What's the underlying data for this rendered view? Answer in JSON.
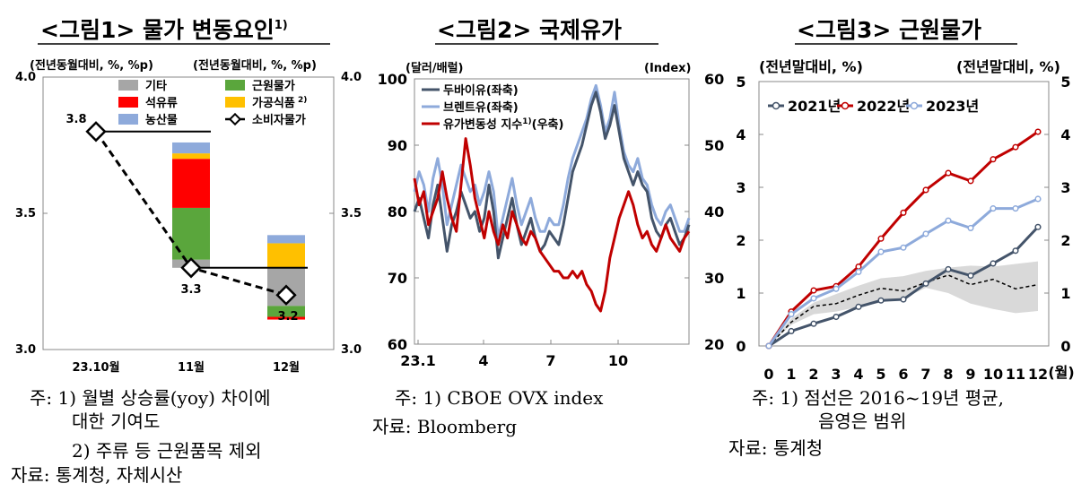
{
  "panel1": {
    "title": "<그림1> 물가 변동요인",
    "title_sup": "1)",
    "left_unit": "(전년동월대비, %, %p)",
    "right_unit": "(전년동월대비, %, %p)",
    "notes": [
      "주: 1) 월별 상승률(yoy) 차이에",
      "대한 기여도",
      "2) 주류 등 근원품목 제외",
      "자료: 통계청, 자체시산"
    ]
  },
  "panel2": {
    "title": "<그림2> 국제유가",
    "left_unit": "(달러/배럴)",
    "right_unit": "(Index)",
    "notes": [
      "주: 1) CBOE OVX index",
      "자료: Bloomberg"
    ]
  },
  "panel3": {
    "title": "<그림3> 근원물가",
    "left_unit": "(전년말대비, %)",
    "right_unit": "(전년말대비, %)",
    "notes": [
      "주: 1) 점선은 2016~19년 평균,",
      "음영은 범위",
      "자료: 통계청"
    ]
  },
  "colors": {
    "other": "#a6a6a6",
    "core": "#5aa63c",
    "oil": "#ff0000",
    "processed": "#ffc000",
    "agri": "#8eaadb",
    "dubai": "#44546a",
    "brent": "#8eaadb",
    "ovx": "#c00000",
    "y2021": "#44546a",
    "y2022": "#c00000",
    "y2023": "#8eaadb",
    "range": "#d9d9d9"
  },
  "chart_data": [
    {
      "type": "bar",
      "title": "<그림1> 물가 변동요인",
      "categories": [
        "23.10월",
        "11월",
        "12월"
      ],
      "ylim": [
        3.0,
        4.0
      ],
      "yticks": [
        3.0,
        3.5,
        4.0
      ],
      "cpi_line": {
        "name": "소비자물가",
        "values": [
          3.8,
          3.3,
          3.2
        ],
        "labels": [
          "3.8",
          "3.3",
          "3.2"
        ]
      },
      "legend": [
        "기타",
        "근원물가",
        "석유류",
        "가공식품",
        "농산물",
        "소비자물가"
      ],
      "legend_sup": {
        "가공식품": "2)"
      },
      "stacks": [
        {
          "category": "11월",
          "base": 3.3,
          "segments": [
            {
              "name": "기타",
              "value": 0.03
            },
            {
              "name": "근원물가",
              "value": 0.19
            },
            {
              "name": "석유류",
              "value": 0.18
            },
            {
              "name": "가공식품",
              "value": 0.02
            },
            {
              "name": "농산물",
              "value": 0.04
            }
          ]
        },
        {
          "category": "12월",
          "base": 3.3,
          "segments": [
            {
              "name": "기타",
              "value": -0.14
            },
            {
              "name": "근원물가",
              "value": -0.04
            },
            {
              "name": "석유류",
              "value": -0.01
            },
            {
              "name": "가공식품",
              "value": 0.09
            },
            {
              "name": "농산물",
              "value": 0.03
            }
          ]
        }
      ]
    },
    {
      "type": "line",
      "title": "<그림2> 국제유가",
      "xticks": [
        "23.1",
        "4",
        "7",
        "10"
      ],
      "ylim_left": [
        60,
        100
      ],
      "yticks_left": [
        60,
        70,
        80,
        90,
        100
      ],
      "ylim_right": [
        20,
        60
      ],
      "yticks_right": [
        20,
        30,
        40,
        50,
        60
      ],
      "series": [
        {
          "name": "두바이유(좌축)",
          "axis": "left",
          "values": [
            80,
            82,
            79,
            76,
            81,
            84,
            79,
            74,
            78,
            80,
            83,
            81,
            79,
            80,
            77,
            79,
            84,
            80,
            73,
            76,
            79,
            82,
            78,
            75,
            77,
            79,
            76,
            74,
            75,
            77,
            76,
            75,
            78,
            82,
            86,
            88,
            90,
            93,
            96,
            98,
            95,
            91,
            93,
            96,
            92,
            88,
            86,
            84,
            86,
            84,
            83,
            79,
            77,
            76,
            78,
            79,
            77,
            75,
            76,
            78
          ]
        },
        {
          "name": "브렌트유(좌축)",
          "axis": "left",
          "values": [
            83,
            86,
            84,
            80,
            85,
            88,
            84,
            78,
            81,
            84,
            87,
            85,
            83,
            84,
            81,
            83,
            86,
            83,
            76,
            79,
            82,
            85,
            81,
            78,
            80,
            82,
            79,
            77,
            77,
            79,
            78,
            78,
            81,
            85,
            88,
            90,
            92,
            94,
            97,
            99,
            96,
            92,
            94,
            98,
            93,
            89,
            87,
            86,
            88,
            85,
            84,
            81,
            79,
            78,
            80,
            81,
            79,
            77,
            77,
            79
          ]
        },
        {
          "name": "유가변동성 지수",
          "name_sup": "1)",
          "name_suffix": "(우축)",
          "axis": "right",
          "values": [
            45,
            41,
            43,
            38,
            40,
            42,
            46,
            42,
            39,
            37,
            44,
            51,
            47,
            42,
            39,
            36,
            40,
            37,
            35,
            38,
            36,
            40,
            38,
            36,
            35,
            37,
            36,
            34,
            33,
            32,
            31,
            31,
            30,
            30,
            31,
            30,
            31,
            29,
            28,
            26,
            25,
            28,
            33,
            36,
            39,
            41,
            43,
            41,
            38,
            36,
            37,
            35,
            34,
            36,
            38,
            36,
            35,
            34,
            36,
            37
          ]
        }
      ]
    },
    {
      "type": "line",
      "title": "<그림3> 근원물가",
      "x": [
        0,
        1,
        2,
        3,
        4,
        5,
        6,
        7,
        8,
        9,
        10,
        11,
        12
      ],
      "xunit": "(월)",
      "ylim": [
        0,
        5
      ],
      "yticks": [
        0,
        1,
        2,
        3,
        4,
        5
      ],
      "series": [
        {
          "name": "2021년",
          "values": [
            0,
            0.28,
            0.42,
            0.55,
            0.74,
            0.86,
            0.88,
            1.18,
            1.45,
            1.33,
            1.56,
            1.8,
            2.25
          ]
        },
        {
          "name": "2022년",
          "values": [
            0,
            0.65,
            1.05,
            1.13,
            1.5,
            2.03,
            2.52,
            2.95,
            3.27,
            3.12,
            3.53,
            3.76,
            4.05
          ]
        },
        {
          "name": "2023년",
          "values": [
            0,
            0.6,
            0.9,
            1.08,
            1.4,
            1.78,
            1.86,
            2.12,
            2.37,
            2.23,
            2.6,
            2.6,
            2.78
          ]
        }
      ],
      "avg_2016_2019": [
        0,
        0.45,
        0.75,
        0.8,
        0.96,
        1.09,
        1.04,
        1.2,
        1.34,
        1.16,
        1.26,
        1.08,
        1.16
      ],
      "range_low": [
        0,
        0.4,
        0.6,
        0.65,
        0.74,
        0.82,
        0.9,
        1.1,
        1.0,
        0.8,
        0.7,
        0.62,
        0.66
      ],
      "range_high": [
        0,
        0.52,
        0.82,
        0.98,
        1.14,
        1.28,
        1.32,
        1.42,
        1.48,
        1.52,
        1.5,
        1.55,
        1.6
      ]
    }
  ]
}
